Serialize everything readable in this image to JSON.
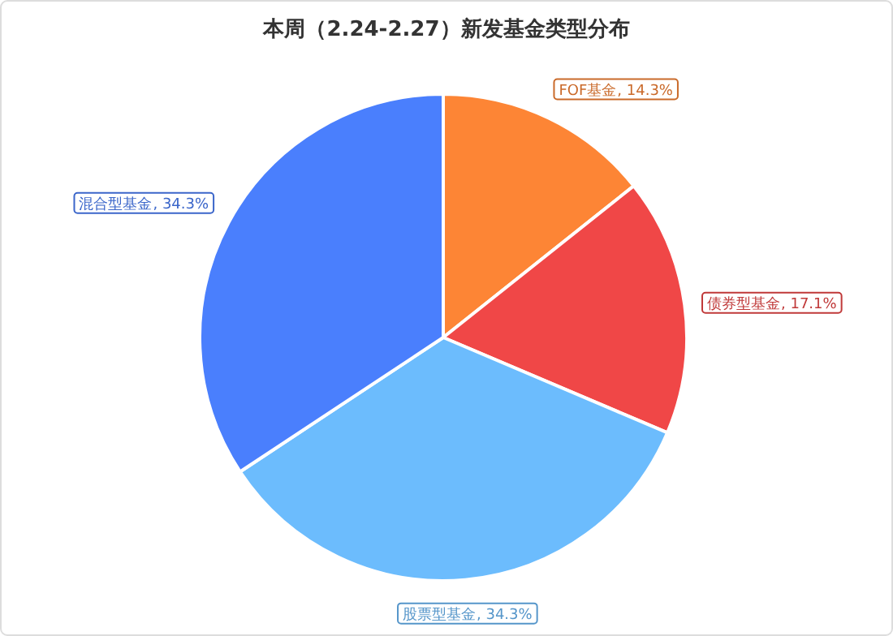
{
  "chart_data": {
    "type": "pie",
    "title": "本周（2.24-2.27）新发基金类型分布",
    "categories": [
      "FOF基金",
      "债券型基金",
      "股票型基金",
      "混合型基金"
    ],
    "values": [
      14.3,
      17.1,
      34.3,
      34.3
    ],
    "colors": [
      "#fd8535",
      "#f04747",
      "#6cbcfd",
      "#4a7ffd"
    ],
    "value_labels": [
      ", 14.3%",
      ", 17.1%",
      ", 34.3%",
      ", 34.3%"
    ],
    "legend": false
  }
}
